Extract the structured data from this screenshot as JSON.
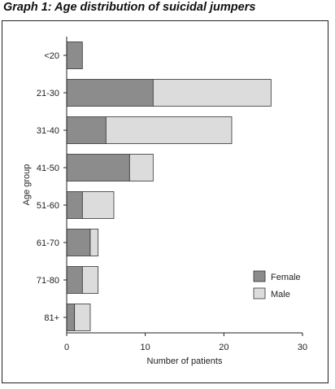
{
  "chart_data": {
    "type": "bar",
    "orientation": "horizontal",
    "stacked": true,
    "title": "Graph 1: Age distribution of suicidal jumpers",
    "xlabel": "Number of patients",
    "ylabel": "Age group",
    "categories": [
      "<20",
      "21-30",
      "31-40",
      "41-50",
      "51-60",
      "61-70",
      "71-80",
      "81+"
    ],
    "series": [
      {
        "name": "Female",
        "values": [
          2,
          11,
          5,
          8,
          2,
          3,
          2,
          1
        ],
        "color": "#8c8c8c"
      },
      {
        "name": "Male",
        "values": [
          0,
          15,
          16,
          3,
          4,
          1,
          2,
          2
        ],
        "color": "#dcdcdc"
      }
    ],
    "xlim": [
      0,
      30
    ],
    "xticks": [
      0,
      10,
      20,
      30
    ],
    "grid": false,
    "legend": "bottom-right"
  }
}
